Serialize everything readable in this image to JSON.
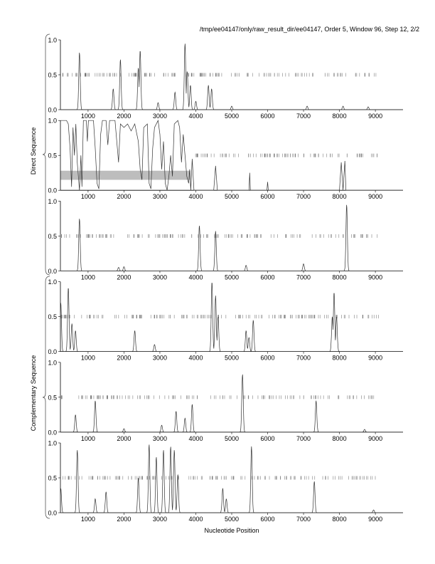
{
  "chart_data": {
    "type": "line",
    "title": "/tmp/ee04147/only/raw_result_dir/ee04147, Order 5, Window 96, Step 12, 2/2",
    "xlabel": "Nucleotide Position",
    "group_labels": [
      "Direct Sequence",
      "Complementary Sequence"
    ],
    "xlim": [
      230,
      9770
    ],
    "ylim": [
      0,
      1
    ],
    "x_ticks": [
      1000,
      2000,
      3000,
      4000,
      5000,
      6000,
      7000,
      8000,
      9000
    ],
    "x_tick_labels": [
      "1000",
      "2000",
      "3000",
      "4000",
      "5000",
      "6000",
      "7000",
      "8000",
      "9000"
    ],
    "y_ticks": [
      0,
      0.5,
      1
    ],
    "y_tick_labels": [
      "0.0",
      "0.5",
      "1.0"
    ],
    "panels": [
      {
        "name": "direct-frame-1",
        "group": "Direct Sequence",
        "peaks": [
          [
            760,
            0.82
          ],
          [
            1700,
            0.3
          ],
          [
            1900,
            0.72
          ],
          [
            2400,
            0.6
          ],
          [
            2450,
            0.85
          ],
          [
            2950,
            0.1
          ],
          [
            3420,
            0.25
          ],
          [
            3700,
            0.95
          ],
          [
            3760,
            0.55
          ],
          [
            3850,
            0.35
          ],
          [
            4000,
            0.12
          ],
          [
            4350,
            0.35
          ],
          [
            4440,
            0.3
          ],
          [
            5000,
            0.05
          ],
          [
            7100,
            0.05
          ],
          [
            8100,
            0.05
          ],
          [
            8800,
            0.04
          ]
        ],
        "ticks_ranges": [
          [
            230,
            9100
          ]
        ],
        "ticks_count": 150
      },
      {
        "name": "direct-frame-2",
        "group": "Direct Sequence",
        "points": [
          [
            230,
            1
          ],
          [
            400,
            1
          ],
          [
            450,
            0.95
          ],
          [
            500,
            0.6
          ],
          [
            540,
            0.05
          ],
          [
            580,
            0.9
          ],
          [
            620,
            0.5
          ],
          [
            660,
            0.95
          ],
          [
            700,
            0.4
          ],
          [
            760,
            0.0
          ],
          [
            800,
            0.5
          ],
          [
            830,
            0.05
          ],
          [
            870,
            1
          ],
          [
            950,
            1
          ],
          [
            980,
            0.7
          ],
          [
            1010,
            1
          ],
          [
            1150,
            1
          ],
          [
            1200,
            0.6
          ],
          [
            1250,
            0.1
          ],
          [
            1300,
            0.02
          ],
          [
            1350,
            0.8
          ],
          [
            1400,
            1
          ],
          [
            1500,
            1
          ],
          [
            1550,
            0.65
          ],
          [
            1600,
            1
          ],
          [
            1750,
            1
          ],
          [
            1800,
            0.7
          ],
          [
            1850,
            0.4
          ],
          [
            1900,
            0.95
          ],
          [
            2000,
            0.9
          ],
          [
            2100,
            0.95
          ],
          [
            2200,
            0.85
          ],
          [
            2300,
            0.95
          ],
          [
            2400,
            0.7
          ],
          [
            2450,
            0.3
          ],
          [
            2500,
            0.15
          ],
          [
            2550,
            0.9
          ],
          [
            2650,
            0.95
          ],
          [
            2700,
            0.1
          ],
          [
            2750,
            0.02
          ],
          [
            2800,
            0.6
          ],
          [
            2850,
            0.9
          ],
          [
            2950,
            1
          ],
          [
            3000,
            0.8
          ],
          [
            3050,
            0.3
          ],
          [
            3100,
            0.7
          ],
          [
            3150,
            0.1
          ],
          [
            3200,
            0.0
          ],
          [
            3250,
            0.2
          ],
          [
            3300,
            0.5
          ],
          [
            3350,
            0.2
          ],
          [
            3400,
            0.95
          ],
          [
            3500,
            1
          ],
          [
            3550,
            0.9
          ],
          [
            3600,
            0.4
          ],
          [
            3650,
            0.8
          ],
          [
            3700,
            0.5
          ],
          [
            3750,
            0.2
          ],
          [
            3800,
            0.1
          ],
          [
            3830,
            0.3
          ],
          [
            3860,
            0.0
          ],
          [
            3900,
            0.45
          ],
          [
            3950,
            0
          ],
          [
            4500,
            0
          ],
          [
            4550,
            0.35
          ],
          [
            4600,
            0
          ],
          [
            5480,
            0
          ],
          [
            5500,
            0.25
          ],
          [
            5520,
            0
          ],
          [
            5980,
            0
          ],
          [
            6000,
            0.12
          ],
          [
            6020,
            0
          ],
          [
            8000,
            0
          ],
          [
            8050,
            0.4
          ],
          [
            8100,
            0
          ],
          [
            8150,
            0.42
          ],
          [
            8180,
            0
          ],
          [
            9770,
            0
          ]
        ],
        "highlight": {
          "x": [
            230,
            3850
          ],
          "y": [
            0.15,
            0.28
          ]
        },
        "ticks_ranges": [
          [
            3880,
            9100
          ]
        ],
        "ticks_count": 90
      },
      {
        "name": "direct-frame-3",
        "group": "Direct Sequence",
        "peaks": [
          [
            760,
            0.75
          ],
          [
            1850,
            0.05
          ],
          [
            2000,
            0.06
          ],
          [
            4100,
            0.65
          ],
          [
            4550,
            0.57
          ],
          [
            5400,
            0.08
          ],
          [
            7000,
            0.1
          ],
          [
            8200,
            0.95
          ]
        ],
        "ticks_ranges": [
          [
            230,
            9100
          ]
        ],
        "ticks_count": 140
      },
      {
        "name": "complementary-frame-1",
        "group": "Complementary Sequence",
        "peaks": [
          [
            240,
            0.7
          ],
          [
            450,
            0.92
          ],
          [
            550,
            0.4
          ],
          [
            650,
            0.3
          ],
          [
            2300,
            0.3
          ],
          [
            2850,
            0.1
          ],
          [
            4450,
            1.0
          ],
          [
            4550,
            0.8
          ],
          [
            4620,
            0.5
          ],
          [
            5400,
            0.3
          ],
          [
            5480,
            0.2
          ],
          [
            5600,
            0.45
          ],
          [
            7800,
            0.5
          ],
          [
            7850,
            0.85
          ],
          [
            7920,
            0.5
          ]
        ],
        "ticks_ranges": [
          [
            230,
            9100
          ]
        ],
        "ticks_count": 150
      },
      {
        "name": "complementary-frame-2",
        "group": "Complementary Sequence",
        "peaks": [
          [
            650,
            0.25
          ],
          [
            1200,
            0.45
          ],
          [
            2000,
            0.05
          ],
          [
            3050,
            0.1
          ],
          [
            3450,
            0.3
          ],
          [
            3700,
            0.2
          ],
          [
            3900,
            0.4
          ],
          [
            5300,
            0.83
          ],
          [
            7350,
            0.45
          ],
          [
            8700,
            0.04
          ]
        ],
        "ticks_ranges": [
          [
            230,
            9100
          ]
        ],
        "ticks_count": 130
      },
      {
        "name": "complementary-frame-3",
        "group": "Complementary Sequence",
        "peaks": [
          [
            240,
            0.35
          ],
          [
            700,
            0.9
          ],
          [
            1200,
            0.2
          ],
          [
            1500,
            0.3
          ],
          [
            2400,
            0.5
          ],
          [
            2700,
            0.98
          ],
          [
            2900,
            0.8
          ],
          [
            3100,
            0.9
          ],
          [
            3300,
            0.95
          ],
          [
            3400,
            0.9
          ],
          [
            3500,
            0.55
          ],
          [
            4750,
            0.35
          ],
          [
            4850,
            0.2
          ],
          [
            5550,
            0.95
          ],
          [
            7300,
            0.45
          ],
          [
            8950,
            0.04
          ]
        ],
        "ticks_ranges": [
          [
            230,
            9100
          ]
        ],
        "ticks_count": 140
      }
    ]
  }
}
